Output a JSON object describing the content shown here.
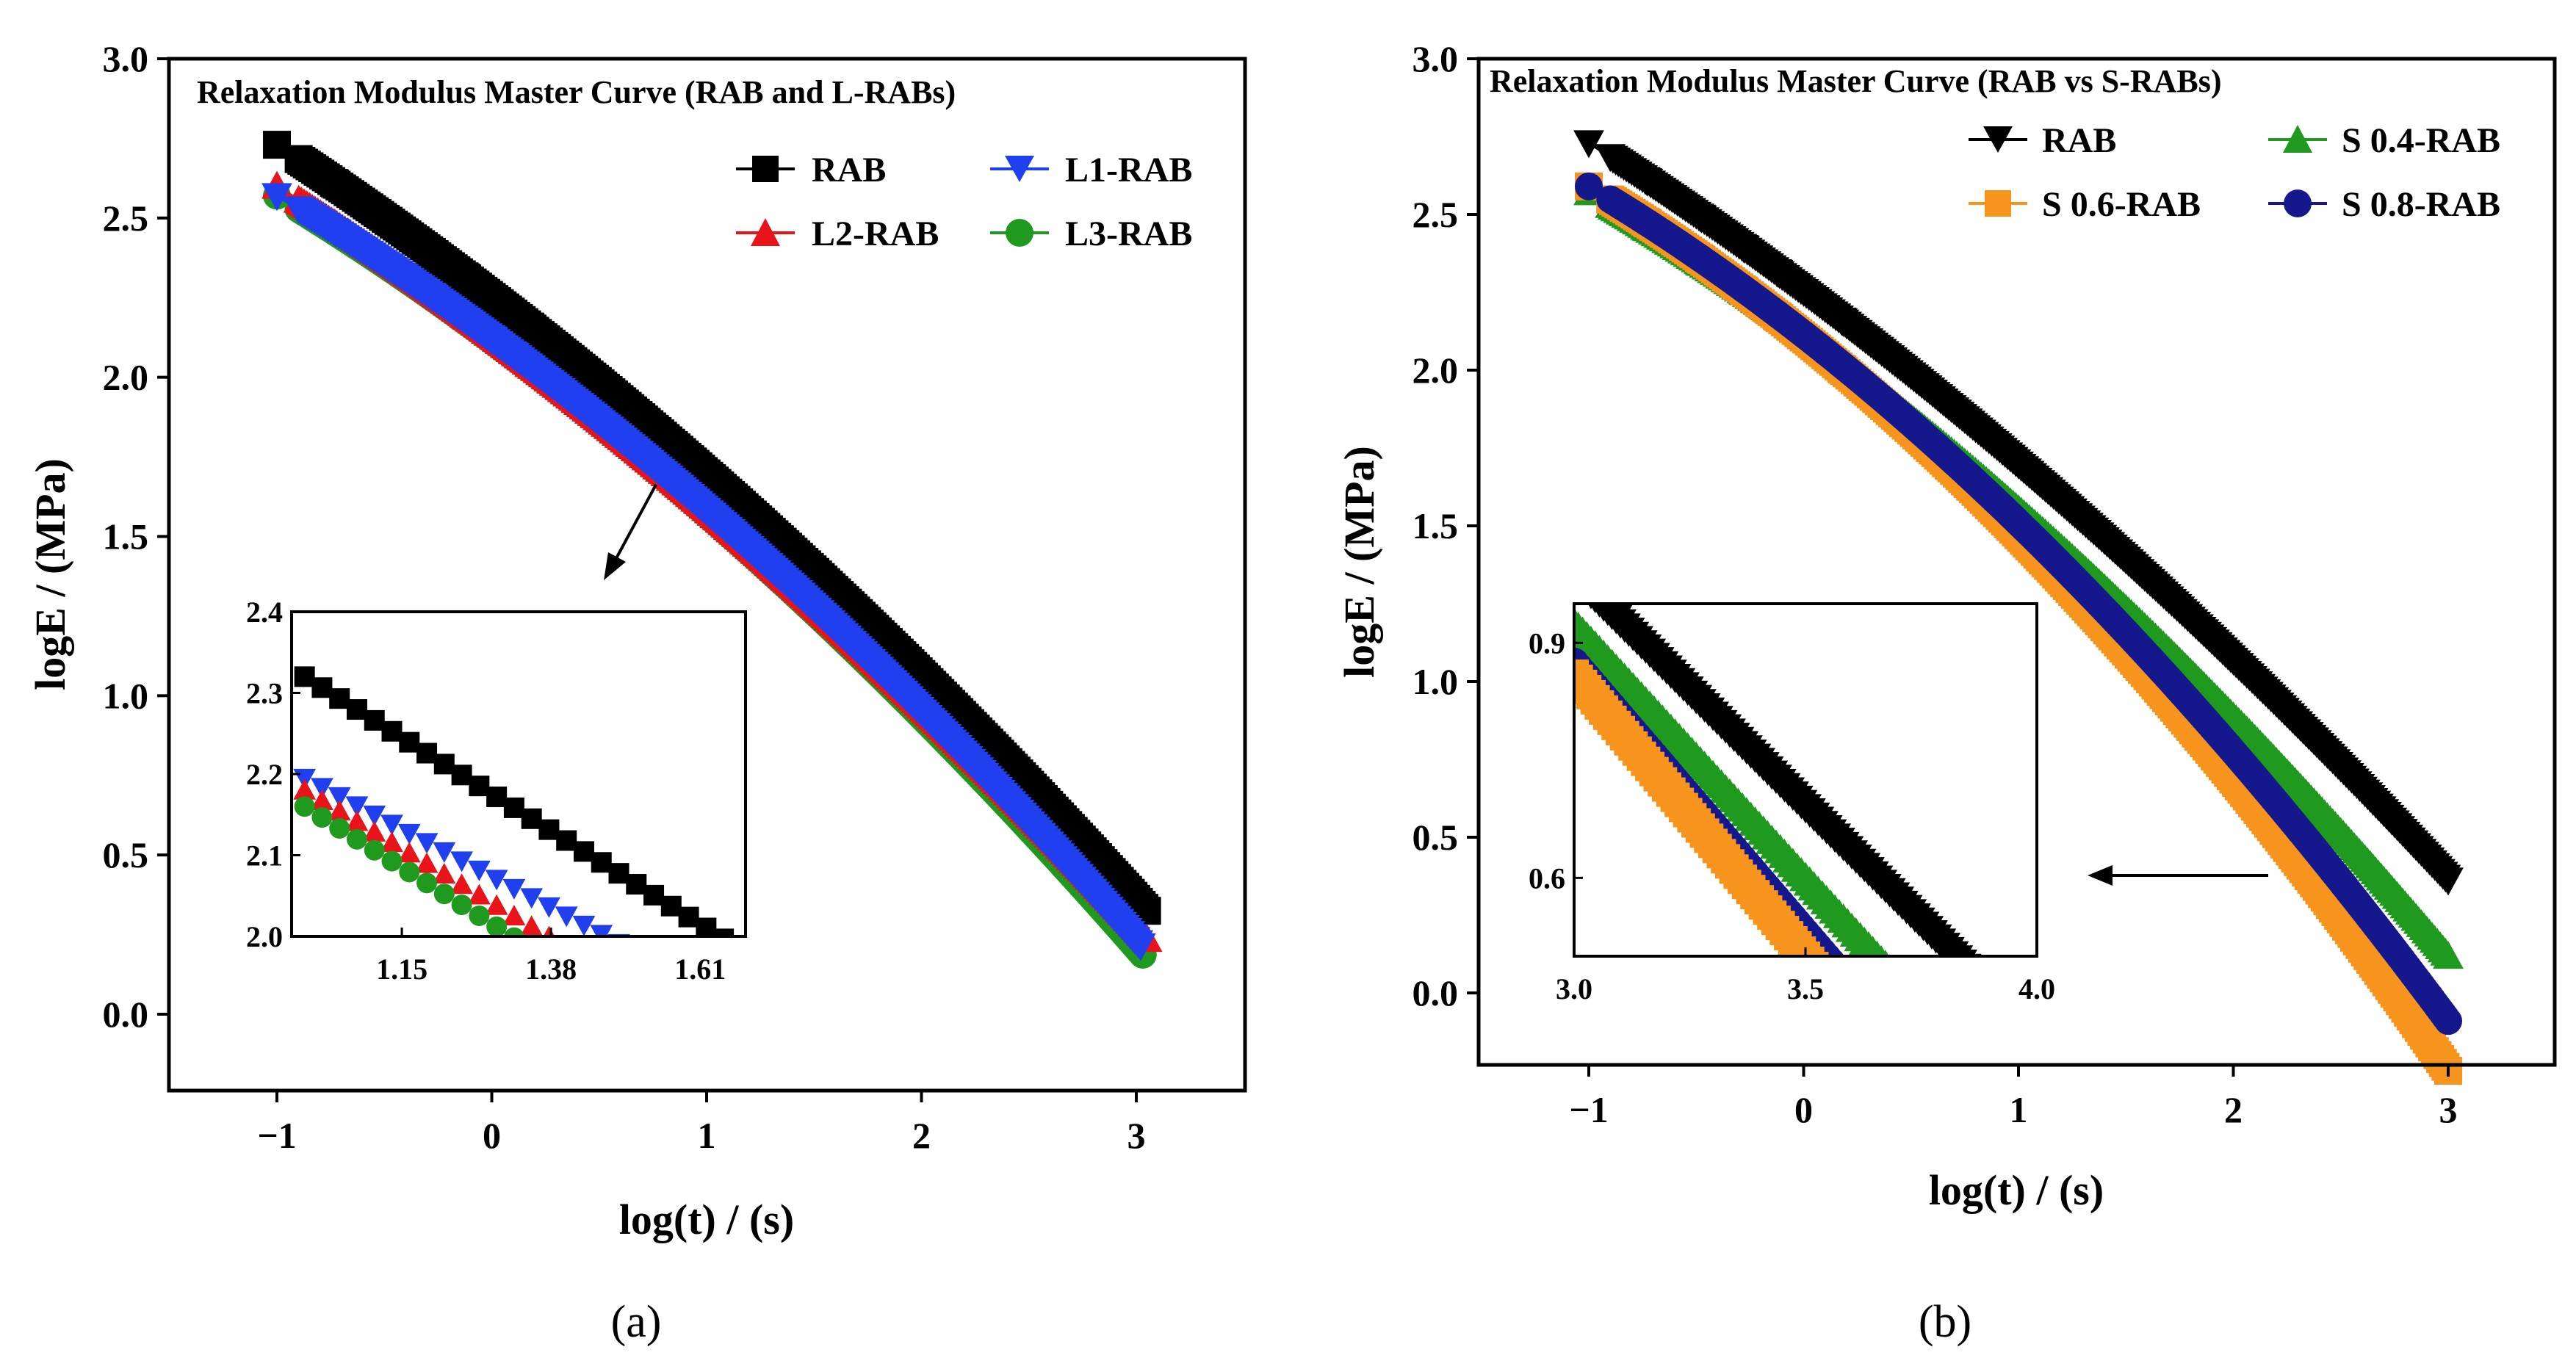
{
  "colors": {
    "black": "#000000",
    "red": "#e8141a",
    "blue": "#2040f0",
    "green": "#1f9a1f",
    "orange": "#f7941d",
    "navy": "#14188c"
  },
  "chart_data": [
    {
      "type": "scatter",
      "panel_label": "(a)",
      "title": "Relaxation Modulus Master Curve (RAB and L-RABs)",
      "xlabel": "log(t) / (s)",
      "ylabel": "logE / (MPa)",
      "xlim": [
        -1.5,
        3.5
      ],
      "ylim": [
        -0.25,
        3.0
      ],
      "x_ticks": [
        "−1",
        "0",
        "1",
        "2",
        "3"
      ],
      "y_ticks": [
        "0.0",
        "0.5",
        "1.0",
        "1.5",
        "2.0",
        "2.5",
        "3.0"
      ],
      "grid": false,
      "legend_position": "top-right",
      "series": [
        {
          "name": "RAB",
          "marker": "square",
          "color": "#000000",
          "x_start": -1,
          "x_end": 3.05,
          "y_start": 2.73,
          "slope": -0.44,
          "curv": -0.038
        },
        {
          "name": "L1-RAB",
          "marker": "triangle-down",
          "color": "#2040f0",
          "x_start": -1,
          "x_end": 3.02,
          "y_start": 2.57,
          "slope": -0.405,
          "curv": -0.045
        },
        {
          "name": "L2-RAB",
          "marker": "triangle-up",
          "color": "#e8141a",
          "x_start": -1,
          "x_end": 3.05,
          "y_start": 2.6,
          "slope": -0.43,
          "curv": -0.038
        },
        {
          "name": "L3-RAB",
          "marker": "circle",
          "color": "#1f9a1f",
          "x_start": -1,
          "x_end": 3.03,
          "y_start": 2.57,
          "slope": -0.41,
          "curv": -0.045
        }
      ],
      "inset": {
        "xlim": [
          0.98,
          1.68
        ],
        "ylim": [
          2.0,
          2.4
        ],
        "x_ticks": [
          "1.15",
          "1.38",
          "1.61"
        ],
        "y_ticks": [
          "2.0",
          "2.1",
          "2.2",
          "2.3",
          "2.4"
        ],
        "series": [
          {
            "name": "RAB",
            "x_start": 1.0,
            "y_start": 2.32,
            "slope": -0.5
          },
          {
            "name": "L1-RAB",
            "x_start": 1.0,
            "y_start": 2.195,
            "slope": -0.42
          },
          {
            "name": "L2-RAB",
            "x_start": 1.0,
            "y_start": 2.18,
            "slope": -0.48
          },
          {
            "name": "L3-RAB",
            "x_start": 1.0,
            "y_start": 2.16,
            "slope": -0.5
          }
        ]
      }
    },
    {
      "type": "scatter",
      "panel_label": "(b)",
      "title": "Relaxation Modulus Master Curve (RAB vs S-RABs)",
      "xlabel": "log(t) / (s)",
      "ylabel": "logE / (MPa)",
      "xlim": [
        -1.5,
        3.5
      ],
      "ylim": [
        -0.25,
        3.0
      ],
      "x_ticks": [
        "−1",
        "0",
        "1",
        "2",
        "3"
      ],
      "y_ticks": [
        "0.0",
        "0.5",
        "1.0",
        "1.5",
        "2.0",
        "2.5",
        "3.0"
      ],
      "grid": false,
      "legend_position": "top-right",
      "series": [
        {
          "name": "RAB",
          "marker": "triangle-down",
          "color": "#000000",
          "x_start": -1,
          "x_end": 3.0,
          "y_start": 2.73,
          "slope": -0.44,
          "curv": -0.038
        },
        {
          "name": "S 0.4-RAB",
          "marker": "triangle-up",
          "color": "#1f9a1f",
          "x_start": -1,
          "x_end": 3.0,
          "y_start": 2.57,
          "slope": -0.405,
          "curv": -0.052
        },
        {
          "name": "S 0.6-RAB",
          "marker": "square",
          "color": "#f7941d",
          "x_start": -1,
          "x_end": 3.0,
          "y_start": 2.59,
          "slope": -0.41,
          "curv": -0.075
        },
        {
          "name": "S 0.8-RAB",
          "marker": "circle",
          "color": "#14188c",
          "x_start": -1,
          "x_end": 3.0,
          "y_start": 2.59,
          "slope": -0.41,
          "curv": -0.065
        }
      ],
      "inset": {
        "xlim": [
          3.0,
          4.0
        ],
        "ylim": [
          0.5,
          0.95
        ],
        "x_ticks": [
          "3.0",
          "3.5",
          "4.0"
        ],
        "y_ticks": [
          "0.6",
          "0.9"
        ],
        "series": [
          {
            "name": "RAB",
            "x_start": 3.0,
            "y_start": 0.985,
            "slope": -0.59
          },
          {
            "name": "S 0.4-RAB",
            "x_start": 3.0,
            "y_start": 0.925,
            "slope": -0.65
          },
          {
            "name": "S 0.8-RAB",
            "x_start": 3.0,
            "y_start": 0.875,
            "slope": -0.69
          },
          {
            "name": "S 0.6-RAB",
            "x_start": 3.0,
            "y_start": 0.86,
            "slope": -0.72
          }
        ]
      }
    }
  ]
}
